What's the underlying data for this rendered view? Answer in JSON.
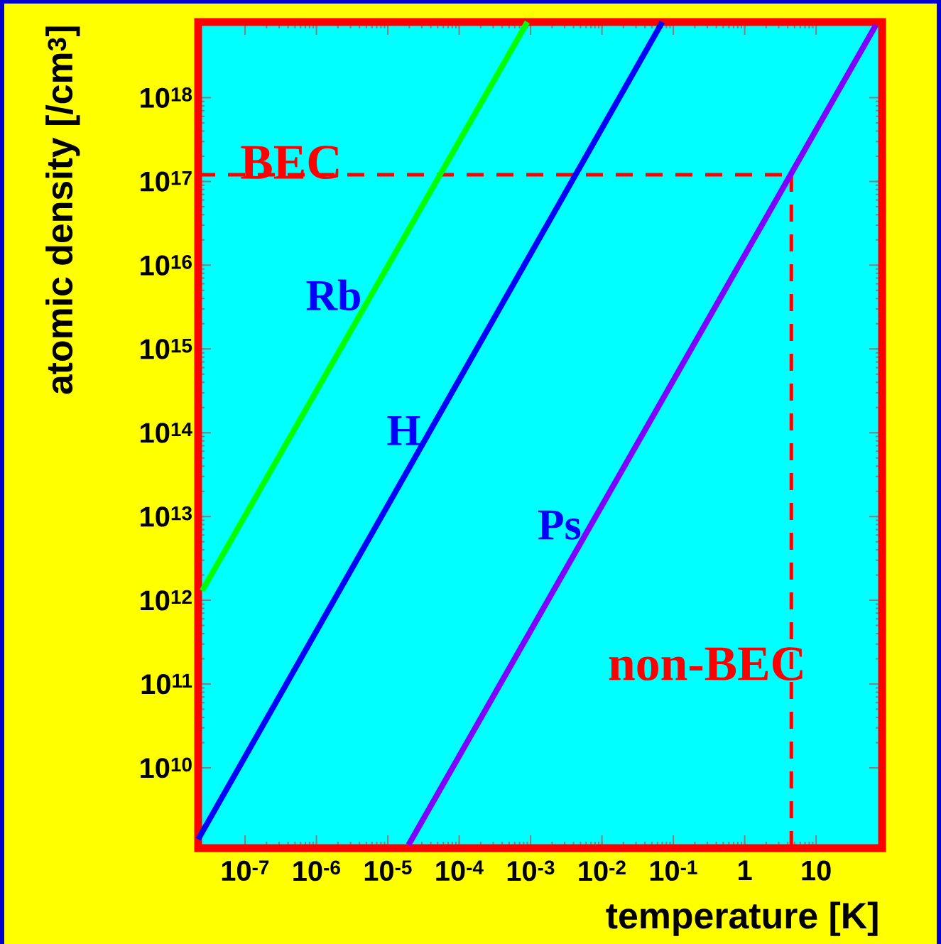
{
  "chart_data": {
    "type": "line",
    "xlabel": "temperature [K]",
    "ylabel": "atomic density [/cm$^{3}$]",
    "log": "xy",
    "xlim": [
      2.2e-08,
      84
    ],
    "ylim": [
      1100000000.0,
      8e+18
    ],
    "xticks": [
      {
        "value": 1e-07,
        "label": "10$^{-7}$"
      },
      {
        "value": 1e-06,
        "label": "10$^{-6}$"
      },
      {
        "value": 1e-05,
        "label": "10$^{-5}$"
      },
      {
        "value": 0.0001,
        "label": "10$^{-4}$"
      },
      {
        "value": 0.001,
        "label": "10$^{-3}$"
      },
      {
        "value": 0.01,
        "label": "10$^{-2}$"
      },
      {
        "value": 0.1,
        "label": "10$^{-1}$"
      },
      1,
      10
    ],
    "yticks": [
      {
        "value": 10000000000.0,
        "label": "10$^{10}$"
      },
      {
        "value": 100000000000.0,
        "label": "10$^{11}$"
      },
      {
        "value": 1000000000000.0,
        "label": "10$^{12}$"
      },
      {
        "value": 10000000000000.0,
        "label": "10$^{13}$"
      },
      {
        "value": 100000000000000.0,
        "label": "10$^{14}$"
      },
      {
        "value": 1000000000000000.0,
        "label": "10$^{15}$"
      },
      {
        "value": 1e+16,
        "label": "10$^{16}$"
      },
      {
        "value": 1e+17,
        "label": "10$^{17}$"
      },
      {
        "value": 1e+18,
        "label": "10$^{18}$"
      }
    ],
    "series": [
      {
        "name": "Rb",
        "color": "#00ff00",
        "x": [
          2.5e-08,
          0.0009
        ],
        "values": [
          1300000000000.0,
          8e+18
        ]
      },
      {
        "name": "H",
        "color": "#0000ff",
        "x": [
          2.2e-08,
          0.07
        ],
        "values": [
          1400000000.0,
          8e+18
        ]
      },
      {
        "name": "Ps",
        "color": "#8000ff",
        "x": [
          1.95e-05,
          69
        ],
        "values": [
          1200000000.0,
          7.4e+18
        ]
      }
    ],
    "ref_lines": [
      {
        "axis": "y",
        "value": 1.2e+17,
        "color": "#ff0000",
        "line_style": "dashed"
      },
      {
        "axis": "x",
        "value": 4.5,
        "color": "#ff0000",
        "line_style": "dashed"
      }
    ],
    "annotations": [
      "BEC",
      "non-BEC"
    ],
    "marker": "none",
    "line_style": "solid",
    "grid": false
  }
}
